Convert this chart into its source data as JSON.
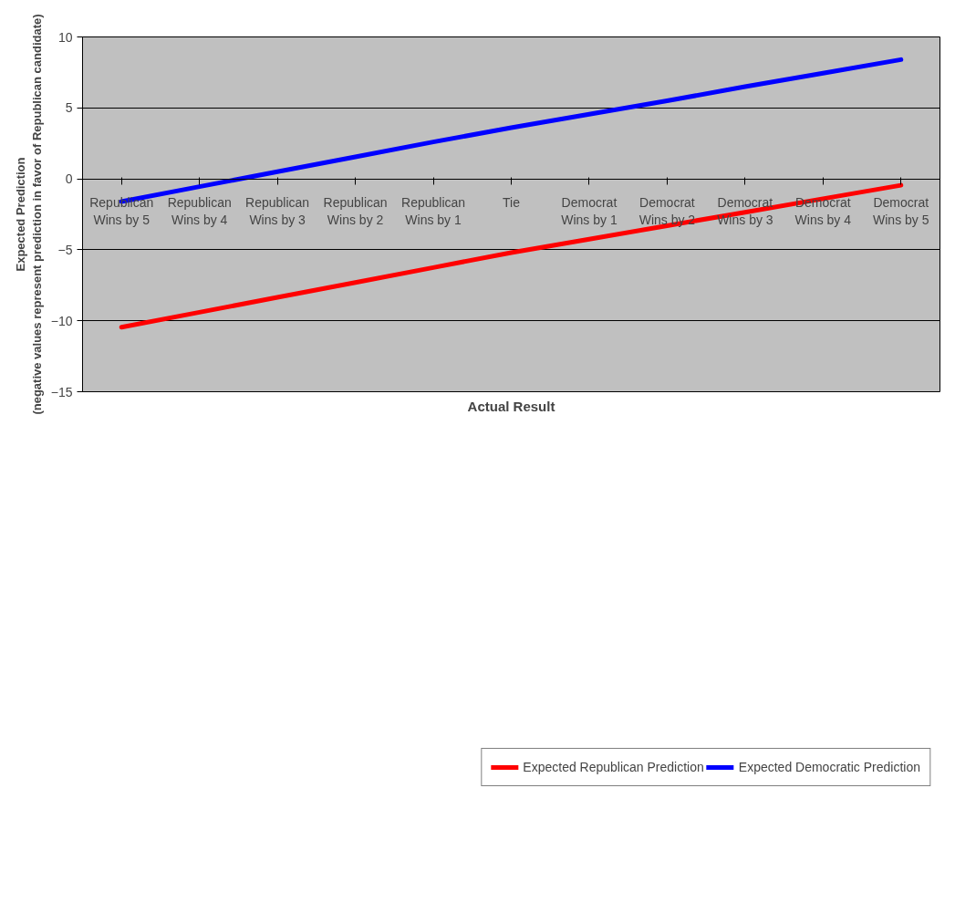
{
  "chart_data": {
    "type": "line",
    "xlabel": "Actual Result",
    "ylabel": "Expected Prediction\n(negative values represent prediction in favor of Republican candidate)",
    "categories": [
      "Republican\nWins by 5",
      "Republican\nWins by 4",
      "Republican\nWins by 3",
      "Republican\nWins by 2",
      "Republican\nWins by 1",
      "Tie",
      "Democrat\nWins by 1",
      "Democrat\nWins by 2",
      "Democrat\nWins by 3",
      "Democrat\nWins by 4",
      "Democrat\nWins by 5"
    ],
    "series": [
      {
        "name": "Expected Republican Prediction",
        "color": "#ff0000",
        "values": [
          -10.45,
          -9.4,
          -8.35,
          -7.3,
          -6.25,
          -5.2,
          -4.25,
          -3.3,
          -2.35,
          -1.4,
          -0.45
        ]
      },
      {
        "name": "Expected Democratic Prediction",
        "color": "#0000ff",
        "values": [
          -1.6,
          -0.55,
          0.5,
          1.55,
          2.6,
          3.6,
          4.55,
          5.5,
          6.5,
          7.45,
          8.4
        ]
      }
    ],
    "ylim": [
      -15,
      10
    ],
    "yticks": [
      -15,
      -10,
      -5,
      0,
      5,
      10
    ],
    "grid": "y",
    "legend": "bottom"
  }
}
